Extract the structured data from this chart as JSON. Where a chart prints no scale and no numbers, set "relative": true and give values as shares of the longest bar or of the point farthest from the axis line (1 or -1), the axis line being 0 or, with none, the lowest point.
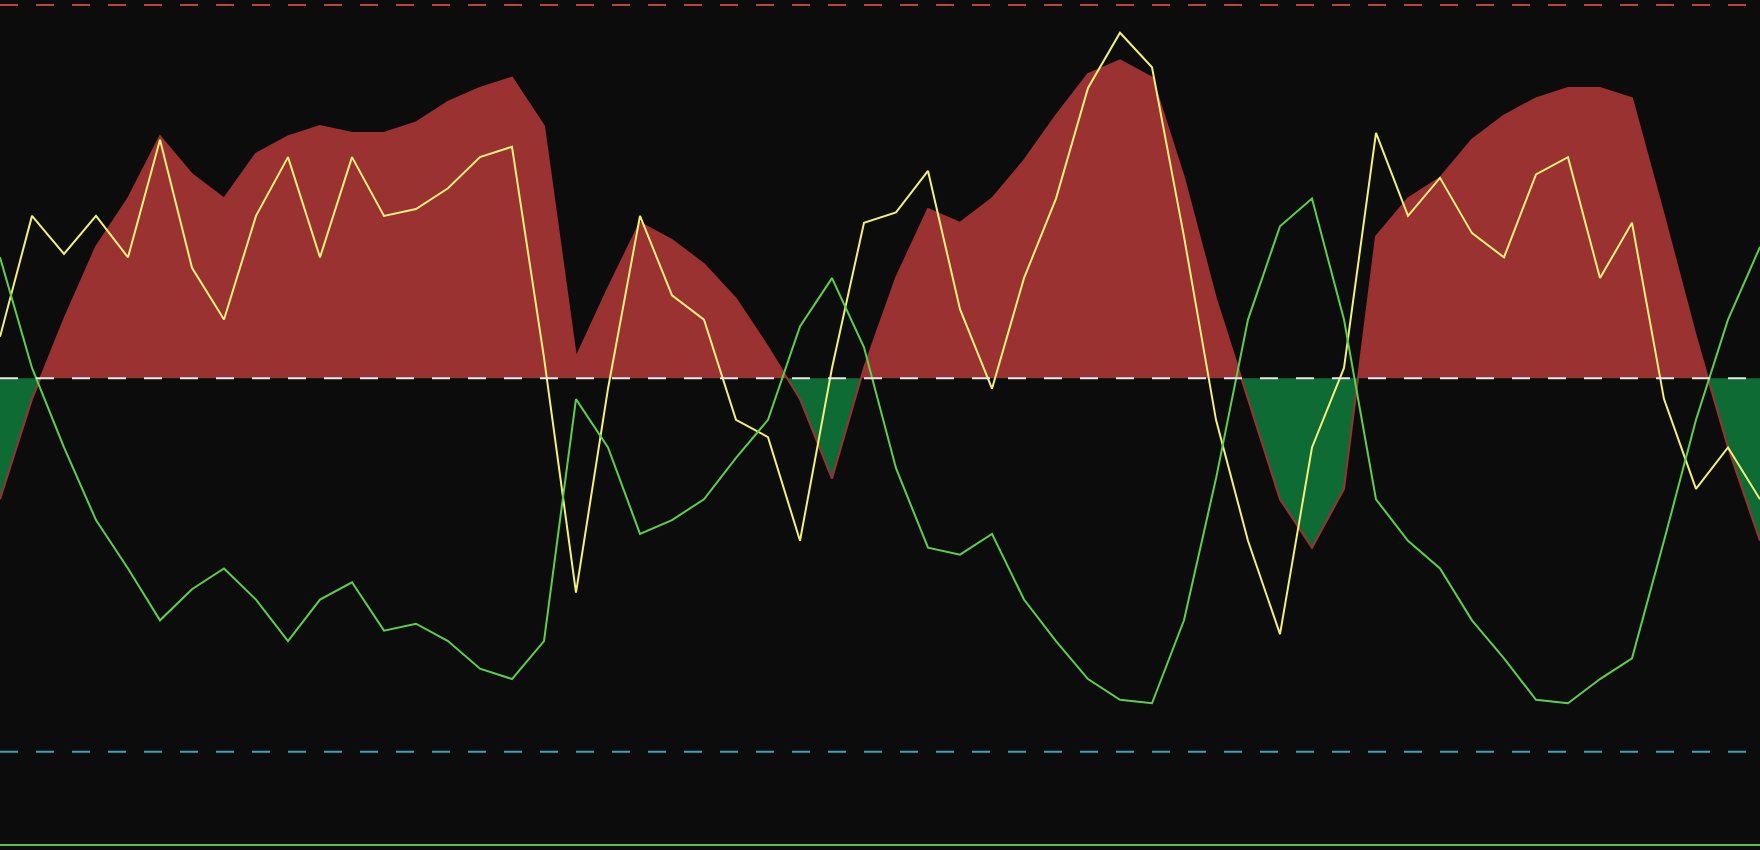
{
  "chart_data": {
    "type": "line",
    "relative": true,
    "categories": [
      null,
      null,
      null,
      null,
      null,
      null,
      null,
      null,
      null,
      null,
      null,
      null,
      null,
      null,
      null,
      null,
      null,
      null,
      null,
      null,
      null,
      null,
      null,
      null,
      null,
      null,
      null,
      null,
      null,
      null,
      null,
      null,
      null,
      null,
      null,
      null,
      null,
      null,
      null,
      null,
      null,
      null,
      null,
      null,
      null,
      null,
      null,
      null,
      null,
      null,
      null,
      null,
      null,
      null,
      null,
      null
    ],
    "series": [
      {
        "type": "area",
        "colors": [
          "#0e6b34",
          "#0e6b34",
          "#9a3232",
          "#9a3232",
          "#9a3232",
          "#9a3232",
          "#9a3232",
          "#9a3232",
          "#9a3232",
          "#9a3232",
          "#9a3232",
          "#9a3232",
          "#9a3232",
          "#9a3232",
          "#9a3232",
          "#9a3232",
          "#9a3232",
          "#9a3232",
          "#9a3232",
          "#9a3232",
          "#9a3232",
          "#9a3232",
          "#9a3232",
          "#9a3232",
          "#9a3232",
          "#0e6b34",
          "#0e6b34",
          "#9a3232",
          "#9a3232",
          "#9a3232",
          "#9a3232",
          "#9a3232",
          "#9a3232",
          "#9a3232",
          "#9a3232",
          "#9a3232",
          "#9a3232",
          "#9a3232",
          "#9a3232",
          "#0e6b34",
          "#0e6b34",
          "#0e6b34",
          "#0e6b34",
          "#9a3232",
          "#9a3232",
          "#9a3232",
          "#9a3232",
          "#9a3232",
          "#9a3232",
          "#9a3232",
          "#9a3232",
          "#9a3232",
          "#9a3232",
          "#9a3232",
          "#0e6b34",
          "#0e6b34"
        ],
        "values": [
          -0.35,
          -0.06,
          0.17,
          0.38,
          0.52,
          0.7,
          0.59,
          0.52,
          0.65,
          0.7,
          0.73,
          0.71,
          0.71,
          0.74,
          0.8,
          0.84,
          0.87,
          0.73,
          0.06,
          0.26,
          0.45,
          0.4,
          0.33,
          0.23,
          0.09,
          -0.06,
          -0.29,
          0.03,
          0.29,
          0.49,
          0.45,
          0.52,
          0.63,
          0.76,
          0.88,
          0.92,
          0.87,
          0.58,
          0.23,
          -0.06,
          -0.35,
          -0.49,
          -0.32,
          0.41,
          0.52,
          0.58,
          0.69,
          0.76,
          0.81,
          0.84,
          0.84,
          0.81,
          0.47,
          0.12,
          -0.2,
          -0.47
        ]
      },
      {
        "color": "#f0f07a",
        "values": [
          0.12,
          0.47,
          0.36,
          0.47,
          0.35,
          0.69,
          0.32,
          0.17,
          0.47,
          0.64,
          0.35,
          0.64,
          0.47,
          0.49,
          0.55,
          0.64,
          0.67,
          0.06,
          -0.62,
          -0.03,
          0.47,
          0.24,
          0.17,
          -0.12,
          -0.17,
          -0.47,
          0.03,
          0.45,
          0.48,
          0.6,
          0.2,
          -0.03,
          0.29,
          0.52,
          0.84,
          1.0,
          0.9,
          0.41,
          -0.12,
          -0.47,
          -0.74,
          -0.2,
          0.03,
          0.71,
          0.47,
          0.58,
          0.42,
          0.35,
          0.59,
          0.64,
          0.29,
          0.45,
          -0.06,
          -0.32,
          -0.2,
          -0.35
        ]
      },
      {
        "color": "#5ecf4a",
        "values": [
          0.35,
          0.03,
          -0.2,
          -0.41,
          -0.55,
          -0.7,
          -0.61,
          -0.55,
          -0.64,
          -0.76,
          -0.64,
          -0.59,
          -0.73,
          -0.71,
          -0.76,
          -0.84,
          -0.87,
          -0.76,
          -0.06,
          -0.2,
          -0.45,
          -0.41,
          -0.35,
          -0.23,
          -0.12,
          0.15,
          0.29,
          0.09,
          -0.26,
          -0.49,
          -0.51,
          -0.45,
          -0.64,
          -0.76,
          -0.87,
          -0.93,
          -0.94,
          -0.7,
          -0.29,
          0.17,
          0.44,
          0.52,
          0.17,
          -0.35,
          -0.47,
          -0.55,
          -0.7,
          -0.81,
          -0.93,
          -0.94,
          -0.87,
          -0.81,
          -0.47,
          -0.12,
          0.17,
          0.38
        ]
      }
    ],
    "ref_lines": [
      {
        "axis": "y",
        "value": 1.08,
        "color": "#c04040",
        "line_style": "dashed"
      },
      {
        "axis": "y",
        "value": 0,
        "color": "#e8e8e8",
        "line_style": "dashed"
      },
      {
        "axis": "y",
        "value": -1.08,
        "color": "#40a0c0",
        "line_style": "dashed"
      },
      {
        "axis": "y",
        "value": -1.35,
        "color": "#60c040",
        "line_style": "solid"
      }
    ]
  }
}
